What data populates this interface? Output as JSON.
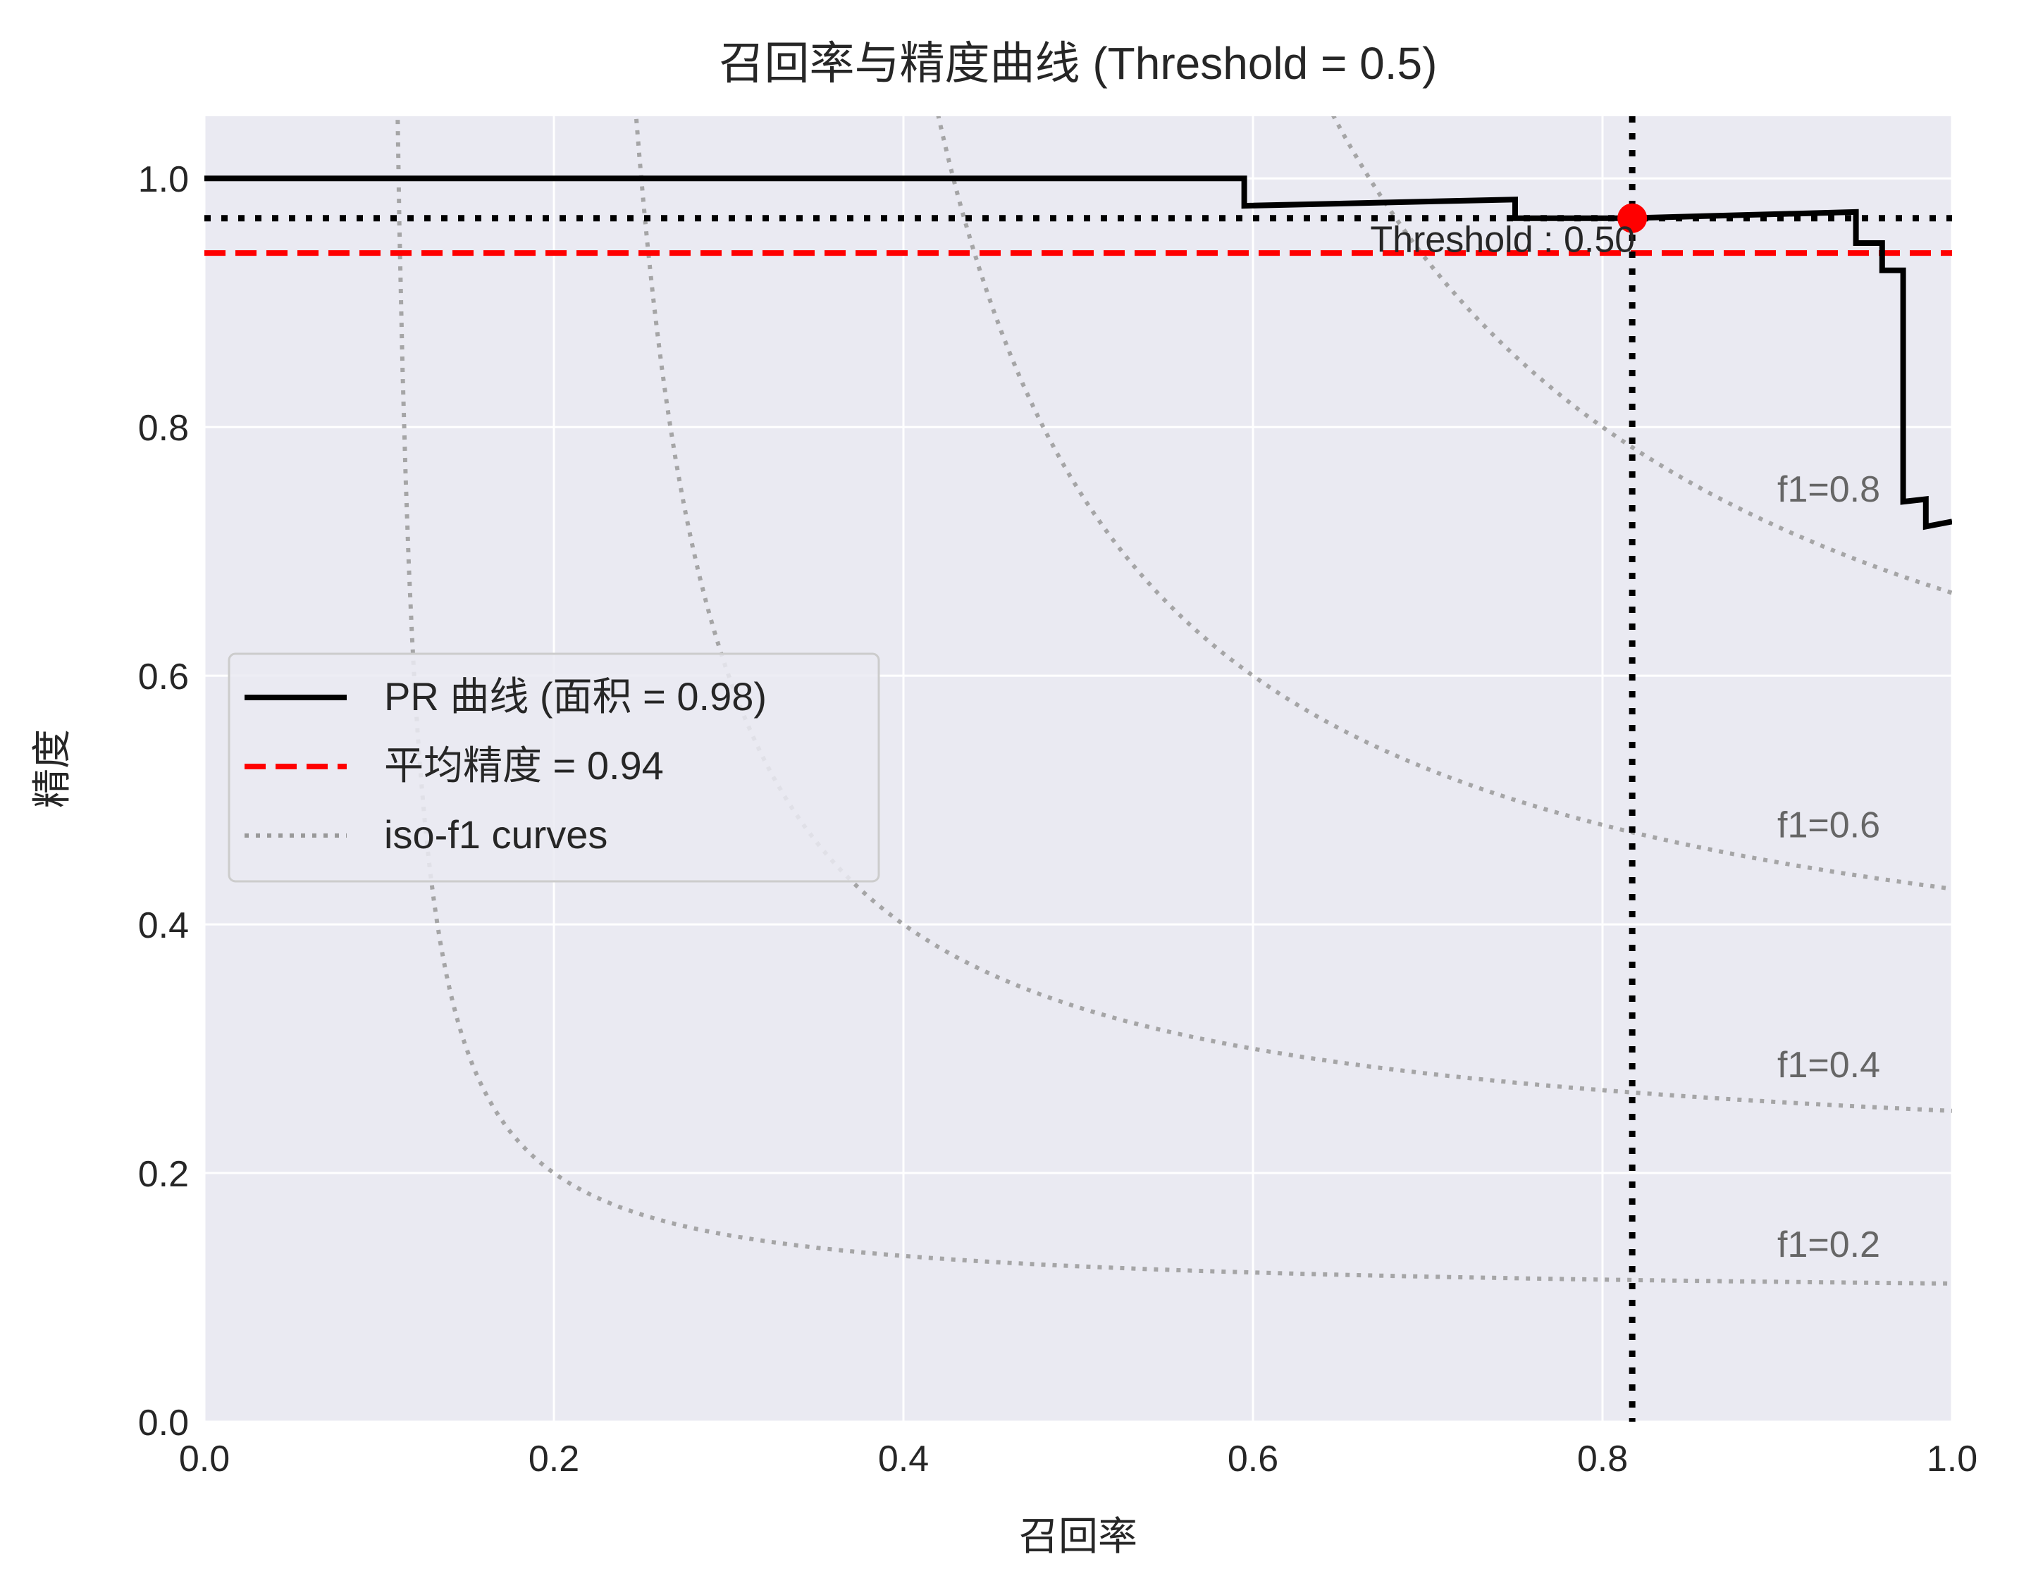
{
  "chart_data": {
    "type": "line",
    "title": "召回率与精度曲线 (Threshold = 0.5)",
    "xlabel": "召回率",
    "ylabel": "精度",
    "xlim": [
      0,
      1.0
    ],
    "ylim": [
      0,
      1.05
    ],
    "x_ticks": [
      0.0,
      0.2,
      0.4,
      0.6,
      0.8,
      1.0
    ],
    "x_tick_labels": [
      "0.0",
      "0.2",
      "0.4",
      "0.6",
      "0.8",
      "1.0"
    ],
    "y_ticks": [
      0.0,
      0.2,
      0.4,
      0.6,
      0.8,
      1.0
    ],
    "y_tick_labels": [
      "0.0",
      "0.2",
      "0.4",
      "0.6",
      "0.8",
      "1.0"
    ],
    "grid": true,
    "legend_position": "center-left",
    "series": [
      {
        "name": "PR 曲线 (面积 = 0.98)",
        "style": "solid",
        "color": "#000000",
        "x": [
          0.0,
          0.595,
          0.595,
          0.75,
          0.75,
          0.815,
          0.945,
          0.945,
          0.96,
          0.96,
          0.972,
          0.972,
          0.985,
          0.985,
          1.0
        ],
        "y": [
          1.0,
          1.0,
          0.978,
          0.983,
          0.968,
          0.968,
          0.973,
          0.948,
          0.948,
          0.926,
          0.926,
          0.74,
          0.742,
          0.72,
          0.724
        ]
      },
      {
        "name": "平均精度 = 0.94",
        "style": "dashed",
        "color": "#ff0000",
        "value": 0.94
      },
      {
        "name": "iso-f1 curves",
        "style": "dotted",
        "color": "#999999",
        "f1_values": [
          0.2,
          0.4,
          0.6,
          0.8
        ],
        "labels": [
          "f1=0.2",
          "f1=0.4",
          "f1=0.6",
          "f1=0.8"
        ]
      }
    ],
    "threshold": {
      "label": "Threshold : 0.50",
      "recall": 0.817,
      "precision": 0.968,
      "marker_color": "#ff0000"
    },
    "colors": {
      "plot_background": "#eaeaf2",
      "grid": "#ffffff",
      "text": "#262626",
      "iso_label": "#666666"
    }
  }
}
